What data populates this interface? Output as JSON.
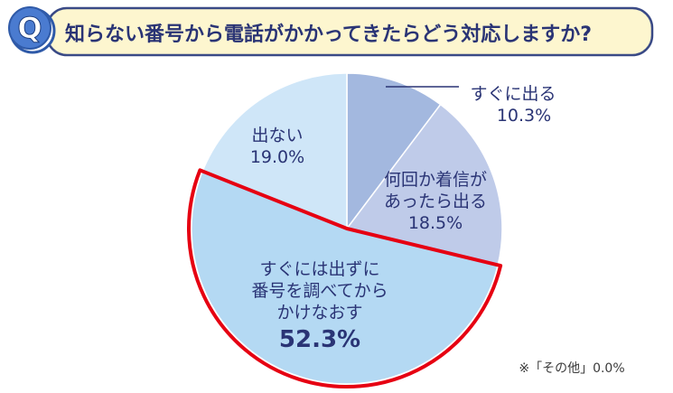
{
  "header": {
    "badge": "Q",
    "question": "知らない番号から電話がかかってきたらどう対応しますか?"
  },
  "chart_data": {
    "type": "pie",
    "title": "知らない番号から電話がかかってきたらどう対応しますか?",
    "unit": "%",
    "start": "12 o'clock",
    "direction": "clockwise",
    "slices": [
      {
        "id": "sugu",
        "label_lines": [
          "すぐに出る"
        ],
        "value": 10.3,
        "value_text": "10.3%",
        "color": "#a3b8df",
        "highlight": false
      },
      {
        "id": "nankai",
        "label_lines": [
          "何回か着信が",
          "あったら出る"
        ],
        "value": 18.5,
        "value_text": "18.5%",
        "color": "#bfcbe9",
        "highlight": false
      },
      {
        "id": "shirabete",
        "label_lines": [
          "すぐには出ずに",
          "番号を調べてから",
          "かけなおす"
        ],
        "value": 52.3,
        "value_text": "52.3%",
        "color": "#b4d9f3",
        "highlight": true
      },
      {
        "id": "denai",
        "label_lines": [
          "出ない"
        ],
        "value": 19.0,
        "value_text": "19.0%",
        "color": "#cfe6f8",
        "highlight": false
      }
    ],
    "highlight_color": "#e60012",
    "footnote": "※「その他」0.0%"
  }
}
